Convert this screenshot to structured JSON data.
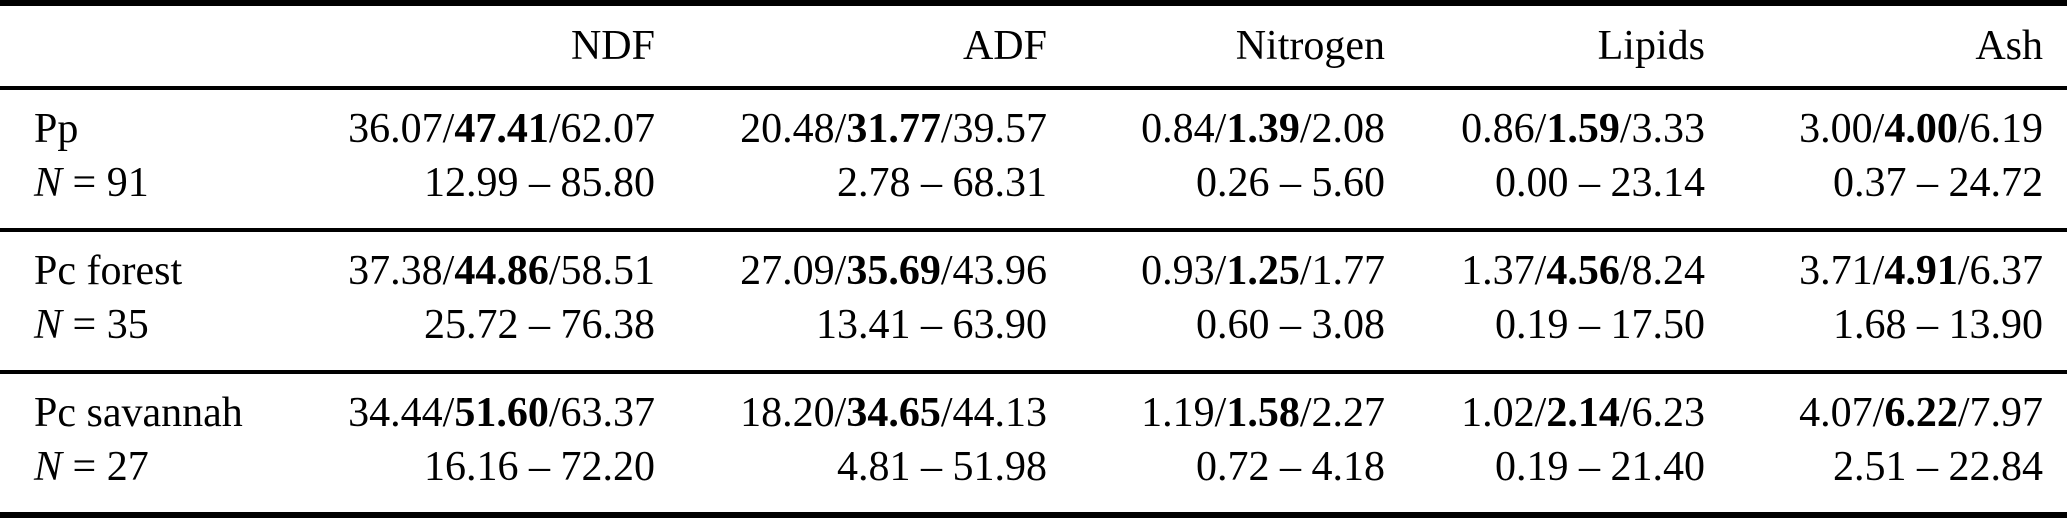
{
  "page": {
    "background": "#ffffff",
    "text_color": "#000000",
    "rule_color": "#000000"
  },
  "table": {
    "value_separator": "/",
    "header": {
      "row_label": "",
      "columns": [
        "NDF",
        "ADF",
        "Nitrogen",
        "Lipids",
        "Ash"
      ]
    },
    "rows": [
      {
        "label": "Pp",
        "n_symbol": "N",
        "n_rest": " = 91",
        "cells": [
          {
            "min": "36.07",
            "median": "47.41",
            "max": "62.07",
            "range": "12.99 – 85.80"
          },
          {
            "min": "20.48",
            "median": "31.77",
            "max": "39.57",
            "range": "2.78 – 68.31"
          },
          {
            "min": "0.84",
            "median": "1.39",
            "max": "2.08",
            "range": "0.26 – 5.60"
          },
          {
            "min": "0.86",
            "median": "1.59",
            "max": "3.33",
            "range": "0.00 – 23.14"
          },
          {
            "min": "3.00",
            "median": "4.00",
            "max": "6.19",
            "range": "0.37 – 24.72"
          }
        ]
      },
      {
        "label": "Pc forest",
        "n_symbol": "N",
        "n_rest": " = 35",
        "cells": [
          {
            "min": "37.38",
            "median": "44.86",
            "max": "58.51",
            "range": "25.72 – 76.38"
          },
          {
            "min": "27.09",
            "median": "35.69",
            "max": "43.96",
            "range": "13.41 – 63.90"
          },
          {
            "min": "0.93",
            "median": "1.25",
            "max": "1.77",
            "range": "0.60 – 3.08"
          },
          {
            "min": "1.37",
            "median": "4.56",
            "max": "8.24",
            "range": "0.19 – 17.50"
          },
          {
            "min": "3.71",
            "median": "4.91",
            "max": "6.37",
            "range": "1.68 – 13.90"
          }
        ]
      },
      {
        "label": "Pc savannah",
        "n_symbol": "N",
        "n_rest": " = 27",
        "cells": [
          {
            "min": "34.44",
            "median": "51.60",
            "max": "63.37",
            "range": "16.16 – 72.20"
          },
          {
            "min": "18.20",
            "median": "34.65",
            "max": "44.13",
            "range": "4.81 – 51.98"
          },
          {
            "min": "1.19",
            "median": "1.58",
            "max": "2.27",
            "range": "0.72 – 4.18"
          },
          {
            "min": "1.02",
            "median": "2.14",
            "max": "6.23",
            "range": "0.19 – 21.40"
          },
          {
            "min": "4.07",
            "median": "6.22",
            "max": "7.97",
            "range": "2.51 – 22.84"
          }
        ]
      }
    ]
  }
}
